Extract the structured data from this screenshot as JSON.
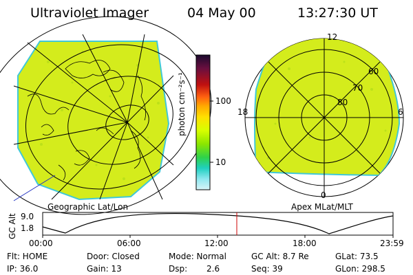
{
  "header": {
    "instrument": "Ultraviolet Imager",
    "date": "04 May 00",
    "time": "13:27:30 UT"
  },
  "colorbar": {
    "unit_label": "photon cm⁻²s⁻¹",
    "tick_100": "100",
    "tick_10": "10",
    "colors_top_to_bottom": [
      "#1b0a2e",
      "#6a0f3f",
      "#c01010",
      "#ff6010",
      "#ffaa00",
      "#ffe000",
      "#d8ff00",
      "#8ce600",
      "#2fd24a",
      "#20d0c0",
      "#8fe8f0",
      "#d8f4f8"
    ]
  },
  "left_map": {
    "caption": "Geographic Lat/Lon",
    "fill_color": "#d4ec1c"
  },
  "right_map": {
    "caption": "Apex MLat/MLT",
    "fill_color": "#d4ec1c",
    "mlt_labels": {
      "top": "12",
      "bottom": "0",
      "left": "18",
      "right": "6"
    },
    "mlat_labels": [
      "60",
      "70",
      "80"
    ]
  },
  "altitude_plot": {
    "ylabel": "GC Alt",
    "y_top": "9.0",
    "y_bottom": "1.8",
    "x_ticks": [
      "00:00",
      "06:00",
      "12:00",
      "18:00",
      "23:59"
    ],
    "current_time_marker_color": "#cc0000"
  },
  "status": {
    "row1": {
      "flt": "Flt: HOME",
      "door": "Door: Closed",
      "mode": "Mode: Normal",
      "gc_alt": "GC Alt: 8.7 Re",
      "glat": "GLat:  73.5"
    },
    "row2": {
      "ip": "IP: 36.0",
      "gain": "Gain: 13",
      "dsp_label": "Dsp:",
      "dsp_value": "2.6",
      "seq": "Seq: 39",
      "glon": "GLon: 298.5"
    }
  }
}
